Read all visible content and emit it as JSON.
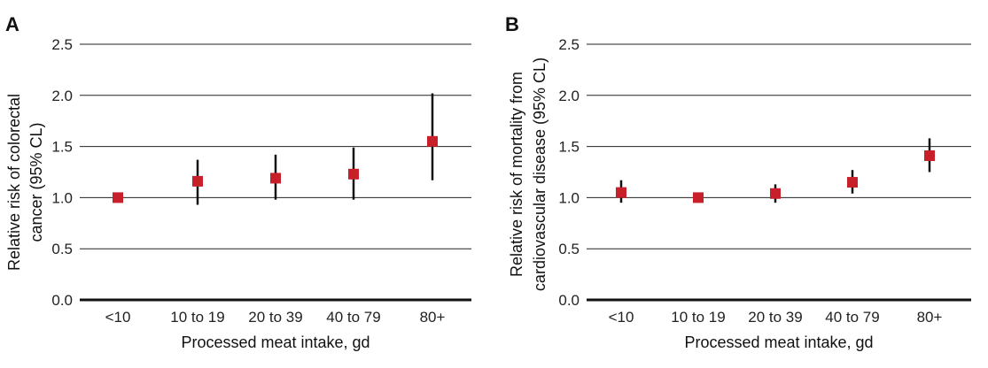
{
  "colors": {
    "marker": "#c8202b",
    "errorbar": "#111111",
    "gridline": "#222222",
    "axis": "#111111"
  },
  "chart_data": [
    {
      "panel": "A",
      "type": "scatter",
      "title": "",
      "xlabel": "Processed meat intake, gd",
      "ylabel_lines": [
        "Relative risk of colorectal",
        "cancer (95% CL)"
      ],
      "categories": [
        "<10",
        "10 to  19",
        "20 to 39",
        "40 to 79",
        "80+"
      ],
      "y_ticks": [
        "0.0",
        "0.5",
        "1.0",
        "1.5",
        "2.0",
        "2.5"
      ],
      "ylim": [
        0,
        2.5
      ],
      "grid": true,
      "series": [
        {
          "values": [
            1.0,
            1.16,
            1.19,
            1.23,
            1.55
          ],
          "lower": [
            1.0,
            0.93,
            0.98,
            0.98,
            1.17
          ],
          "upper": [
            1.0,
            1.37,
            1.42,
            1.49,
            2.02
          ]
        }
      ]
    },
    {
      "panel": "B",
      "type": "scatter",
      "title": "",
      "xlabel": "Processed meat intake, gd",
      "ylabel_lines": [
        "Relative risk of mortality from",
        "cardiovascular disease (95% CL)"
      ],
      "categories": [
        "<10",
        "10 to  19",
        "20 to 39",
        "40 to 79",
        "80+"
      ],
      "y_ticks": [
        "0.0",
        "0.5",
        "1.0",
        "1.5",
        "2.0",
        "2.5"
      ],
      "ylim": [
        0,
        2.5
      ],
      "grid": true,
      "series": [
        {
          "values": [
            1.05,
            1.0,
            1.04,
            1.15,
            1.41
          ],
          "lower": [
            0.95,
            1.0,
            0.95,
            1.04,
            1.25
          ],
          "upper": [
            1.17,
            1.0,
            1.13,
            1.27,
            1.58
          ]
        }
      ]
    }
  ]
}
